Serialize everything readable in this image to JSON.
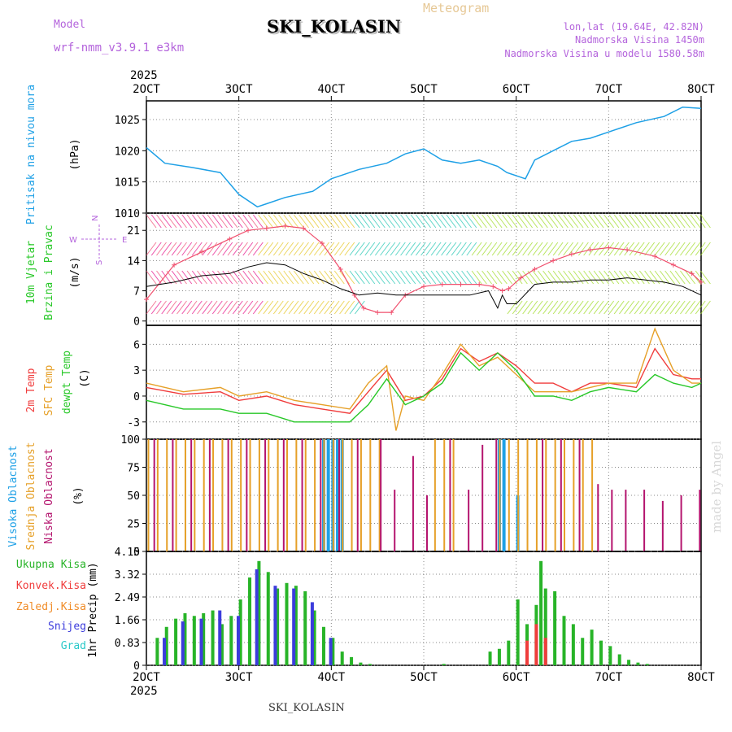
{
  "header": {
    "model_label": "Model",
    "model_name": "wrf-nmm_v3.9.1  e3km",
    "station": "SKI_KOLASIN",
    "product": "Meteogram",
    "lonlat": "lon,lat (19.64E, 42.82N)",
    "elevation": "Nadmorska Visina 1450m",
    "model_elevation": "Nadmorska Visina u modelu 1580.58m",
    "year_top": "2025",
    "year_bottom": "2025",
    "footer_station": "SKI_KOLASIN",
    "watermark": "made by Angel"
  },
  "colors": {
    "pressure": "#1ea0e6",
    "temp2m": "#f03c3c",
    "sfc_temp": "#e6a028",
    "dewpoint": "#28c828",
    "wind_speed": "#f0506e",
    "wind_line": "#000000",
    "high_cloud": "#1ea0e6",
    "mid_cloud": "#e6a028",
    "low_cloud": "#b4146e",
    "precip_total": "#28b428",
    "precip_conv": "#f03c3c",
    "precip_snow": "#3c3cdc",
    "grid": "#888888"
  },
  "chart_data": [
    {
      "id": "pressure",
      "type": "line",
      "title_lines": [
        "Pritisak na nivou mora",
        "(hPa)"
      ],
      "ylim": [
        1010,
        1028
      ],
      "yticks": [
        "1010",
        "1015",
        "1020",
        "1025"
      ],
      "x_ticks": [
        "2OCT",
        "3OCT",
        "4OCT",
        "5OCT",
        "6OCT",
        "7OCT",
        "8OCT"
      ],
      "x": [
        2.0,
        2.2,
        2.5,
        2.8,
        3.0,
        3.2,
        3.3,
        3.5,
        3.8,
        4.0,
        4.3,
        4.6,
        4.8,
        5.0,
        5.2,
        5.4,
        5.6,
        5.8,
        5.9,
        6.1,
        6.2,
        6.4,
        6.6,
        6.8,
        7.0,
        7.3,
        7.6,
        7.8,
        8.0
      ],
      "values": [
        1020.5,
        1018,
        1017.3,
        1016.5,
        1013,
        1011,
        1011.5,
        1012.5,
        1013.5,
        1015.5,
        1017,
        1018,
        1019.5,
        1020.3,
        1018.5,
        1018,
        1018.5,
        1017.5,
        1016.5,
        1015.5,
        1018.5,
        1020,
        1021.5,
        1022,
        1023,
        1024.5,
        1025.5,
        1027,
        1026.8
      ]
    },
    {
      "id": "wind",
      "type": "line",
      "title_lines": [
        "10m Vjetar",
        "Brzina i Pravac",
        "(m/s)"
      ],
      "compass": [
        "N",
        "W",
        "E",
        "S"
      ],
      "ylim": [
        -1,
        25
      ],
      "yticks": [
        "0",
        "7",
        "14",
        "21"
      ],
      "series": [
        {
          "name": "speed",
          "x": [
            2.0,
            2.3,
            2.6,
            2.9,
            3.1,
            3.3,
            3.5,
            3.7,
            3.9,
            4.1,
            4.25,
            4.35,
            4.5,
            4.65,
            4.8,
            5.0,
            5.2,
            5.4,
            5.6,
            5.75,
            5.85,
            5.92,
            6.05,
            6.2,
            6.4,
            6.6,
            6.8,
            7.0,
            7.2,
            7.5,
            7.7,
            7.9,
            8.0
          ],
          "values": [
            5,
            13,
            16,
            19,
            21,
            21.5,
            22,
            21.5,
            18,
            12,
            6,
            3,
            2,
            2,
            6,
            8,
            8.5,
            8.5,
            8.5,
            8,
            7,
            7.5,
            10,
            12,
            14,
            15.5,
            16.5,
            17,
            16.5,
            15,
            13,
            11,
            9
          ]
        },
        {
          "name": "gust_line",
          "x": [
            2.0,
            2.3,
            2.6,
            2.9,
            3.1,
            3.3,
            3.5,
            3.7,
            3.9,
            4.1,
            4.3,
            4.5,
            4.7,
            4.9,
            5.1,
            5.3,
            5.5,
            5.7,
            5.8,
            5.85,
            5.9,
            6.0,
            6.2,
            6.4,
            6.6,
            6.8,
            7.0,
            7.2,
            7.4,
            7.6,
            7.8,
            8.0
          ],
          "values": [
            8,
            9,
            10.5,
            11,
            12.5,
            13.5,
            13,
            11,
            9.5,
            7.5,
            6,
            6.5,
            6,
            6,
            6,
            6,
            6,
            7,
            3,
            6,
            4,
            4,
            8.5,
            9,
            9,
            9.5,
            9.5,
            10,
            9.5,
            9,
            8,
            6
          ]
        }
      ]
    },
    {
      "id": "temperature",
      "type": "line",
      "title_lines": [
        "2m Temp",
        "SFC Temp",
        "dewpt Temp",
        "(C)"
      ],
      "ylim": [
        -5,
        8.2
      ],
      "yticks": [
        "-3",
        "0",
        "3",
        "6"
      ],
      "series": [
        {
          "name": "2m Temp",
          "x": [
            2.0,
            2.4,
            2.8,
            3.0,
            3.3,
            3.6,
            3.9,
            4.2,
            4.4,
            4.6,
            4.8,
            5.0,
            5.2,
            5.4,
            5.6,
            5.8,
            6.0,
            6.2,
            6.4,
            6.6,
            6.8,
            7.0,
            7.3,
            7.5,
            7.7,
            7.9,
            8.0
          ],
          "values": [
            1,
            0.2,
            0.5,
            -0.5,
            0,
            -1,
            -1.5,
            -2,
            0.5,
            3,
            -0.5,
            0,
            2,
            5.5,
            4,
            5,
            3.5,
            1.5,
            1.5,
            0.5,
            1.5,
            1.5,
            1,
            5.5,
            2.5,
            2,
            2
          ]
        },
        {
          "name": "SFC Temp",
          "x": [
            2.0,
            2.4,
            2.8,
            3.0,
            3.3,
            3.6,
            3.9,
            4.2,
            4.4,
            4.6,
            4.7,
            4.8,
            5.0,
            5.2,
            5.4,
            5.6,
            5.8,
            6.0,
            6.2,
            6.4,
            6.6,
            6.8,
            7.0,
            7.3,
            7.5,
            7.7,
            7.9,
            8.0
          ],
          "values": [
            1.5,
            0.5,
            1,
            0,
            0.5,
            -0.5,
            -1,
            -1.5,
            1.5,
            3.5,
            -4,
            0,
            -0.5,
            2.5,
            6,
            3.5,
            4.5,
            2.5,
            0.5,
            0.5,
            0.5,
            1,
            1.5,
            1.5,
            7.8,
            3,
            1.5,
            1.5
          ]
        },
        {
          "name": "dewpt Temp",
          "x": [
            2.0,
            2.4,
            2.8,
            3.0,
            3.3,
            3.6,
            3.9,
            4.2,
            4.4,
            4.6,
            4.8,
            5.0,
            5.2,
            5.4,
            5.6,
            5.8,
            6.0,
            6.2,
            6.4,
            6.6,
            6.8,
            7.0,
            7.3,
            7.5,
            7.7,
            7.9,
            8.0
          ],
          "values": [
            -0.5,
            -1.5,
            -1.5,
            -2,
            -2,
            -3,
            -3,
            -3,
            -1,
            2,
            -1,
            0,
            1.5,
            5,
            3,
            5,
            3,
            0,
            0,
            -0.5,
            0.5,
            1,
            0.5,
            2.5,
            1.5,
            1,
            1.5
          ]
        }
      ]
    },
    {
      "id": "clouds",
      "type": "bar",
      "title_lines": [
        "Visoka Oblacnost",
        "Srednja Oblacnost",
        "Niska Oblacnost",
        "(%)"
      ],
      "ylim": [
        0,
        100
      ],
      "yticks": [
        "0",
        "25",
        "50",
        "75",
        "100"
      ],
      "series": [
        {
          "name": "Visoka Oblacnost",
          "x": [
            3.9,
            3.95,
            4.0,
            4.05,
            4.1,
            5.8,
            5.85,
            6.0
          ],
          "values": [
            100,
            100,
            100,
            100,
            100,
            100,
            100,
            50
          ]
        },
        {
          "name": "Srednja Oblacnost",
          "x": [
            2.0,
            2.1,
            2.2,
            2.3,
            2.4,
            2.5,
            2.6,
            2.7,
            2.8,
            2.9,
            3.0,
            3.1,
            3.2,
            3.3,
            3.4,
            3.5,
            3.6,
            3.7,
            3.8,
            3.9,
            4.0,
            4.1,
            4.2,
            4.3,
            4.4,
            4.5,
            5.1,
            5.2,
            5.3,
            5.8,
            5.9,
            6.0,
            6.1,
            6.2,
            6.3,
            6.4,
            6.5,
            6.6,
            6.7,
            6.8
          ],
          "values": [
            100,
            100,
            100,
            100,
            100,
            100,
            100,
            100,
            100,
            100,
            100,
            100,
            100,
            100,
            100,
            100,
            100,
            100,
            100,
            100,
            100,
            100,
            100,
            100,
            100,
            100,
            100,
            100,
            100,
            100,
            100,
            100,
            100,
            100,
            100,
            100,
            100,
            100,
            100,
            100
          ]
        },
        {
          "name": "Niska Oblacnost",
          "x": [
            2.05,
            2.25,
            2.45,
            2.65,
            2.85,
            3.05,
            3.25,
            3.45,
            3.65,
            3.85,
            4.05,
            4.25,
            4.5,
            4.65,
            4.85,
            5.0,
            5.25,
            5.45,
            5.6,
            5.75,
            6.25,
            6.45,
            6.65,
            6.85,
            7.0,
            7.15,
            7.35,
            7.55,
            7.75,
            7.95
          ],
          "values": [
            100,
            100,
            100,
            100,
            100,
            100,
            100,
            100,
            100,
            100,
            100,
            100,
            100,
            55,
            85,
            50,
            100,
            55,
            95,
            100,
            100,
            100,
            100,
            60,
            55,
            55,
            55,
            45,
            50,
            55
          ]
        }
      ]
    },
    {
      "id": "precip",
      "type": "bar",
      "title_lines": [
        "Ukupna Kisa",
        "Konvek.Kisa",
        "Zaledj.Kisa",
        "Snijeg",
        "Grad",
        "1hr Precip (mm)"
      ],
      "legend_colors": [
        "#28b428",
        "#f03c3c",
        "#f08c28",
        "#3c3cdc",
        "#28c8c8"
      ],
      "ylim": [
        0,
        4.15
      ],
      "yticks": [
        "0",
        "0.83",
        "1.66",
        "2.49",
        "3.32",
        "4.15"
      ],
      "series": [
        {
          "name": "Ukupna Kisa",
          "x": [
            2.1,
            2.2,
            2.3,
            2.4,
            2.5,
            2.6,
            2.7,
            2.8,
            2.9,
            3.0,
            3.1,
            3.2,
            3.3,
            3.4,
            3.5,
            3.6,
            3.7,
            3.8,
            3.9,
            4.0,
            4.1,
            4.2,
            4.3,
            4.4,
            5.2,
            5.7,
            5.8,
            5.9,
            6.0,
            6.1,
            6.2,
            6.25,
            6.3,
            6.4,
            6.5,
            6.6,
            6.7,
            6.8,
            6.9,
            7.0,
            7.1,
            7.2,
            7.3,
            7.4
          ],
          "values": [
            1.0,
            1.4,
            1.7,
            1.9,
            1.8,
            1.9,
            2.0,
            1.5,
            1.8,
            2.4,
            3.2,
            3.8,
            3.4,
            2.8,
            3.0,
            2.9,
            2.7,
            2.0,
            1.4,
            1.0,
            0.5,
            0.3,
            0.1,
            0.05,
            0.05,
            0.5,
            0.6,
            0.9,
            2.4,
            1.5,
            2.2,
            3.8,
            2.8,
            2.7,
            1.8,
            1.5,
            1.0,
            1.3,
            0.9,
            0.7,
            0.4,
            0.2,
            0.1,
            0.05
          ]
        },
        {
          "name": "Konvek.Kisa",
          "x": [
            6.1,
            6.2,
            6.3
          ],
          "values": [
            0.9,
            1.5,
            1.0
          ]
        },
        {
          "name": "Snijeg",
          "x": [
            2.15,
            2.35,
            2.55,
            2.75,
            2.95,
            3.15,
            3.35,
            3.55,
            3.75,
            3.95
          ],
          "values": [
            1.0,
            1.6,
            1.7,
            2.0,
            1.8,
            3.5,
            2.9,
            2.8,
            2.3,
            1.0
          ]
        }
      ]
    }
  ]
}
